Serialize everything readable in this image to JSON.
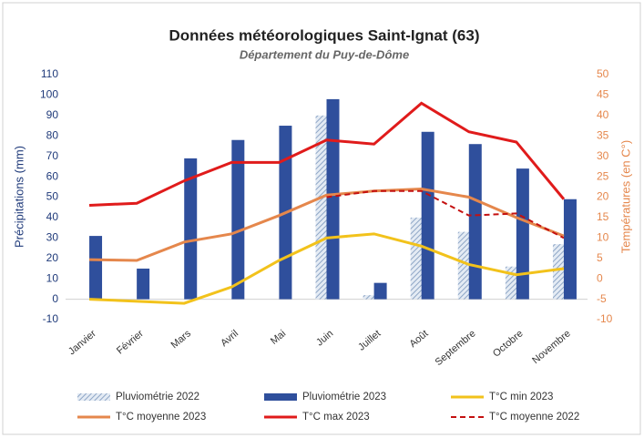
{
  "chart_data": {
    "type": "combo",
    "title": "Données météorologiques Saint-Ignat (63)",
    "subtitle": "Département du Puy-de-Dôme",
    "y_label": "Précipitations (mm)",
    "y2_label": "Températures (en C°)",
    "categories": [
      "Janvier",
      "Février",
      "Mars",
      "Avril",
      "Mai",
      "Juin",
      "Juillet",
      "Août",
      "Septembre",
      "Octobre",
      "Novembre"
    ],
    "ylim": [
      -10,
      110
    ],
    "yticks": [
      -10,
      0,
      10,
      20,
      30,
      40,
      50,
      60,
      70,
      80,
      90,
      100,
      110
    ],
    "y2lim": [
      -10,
      50
    ],
    "y2ticks": [
      -10,
      -5,
      0,
      5,
      10,
      15,
      20,
      25,
      30,
      35,
      40,
      45,
      50
    ],
    "grid": false,
    "legend": "bottom",
    "series": [
      {
        "name": "Pluviométrie 2022",
        "type": "bar",
        "pattern": "hatched",
        "color": "#8ea6c6",
        "values": [
          null,
          null,
          null,
          null,
          null,
          90,
          2,
          40,
          33,
          16,
          27
        ]
      },
      {
        "name": "Pluviométrie 2023",
        "type": "bar",
        "color": "#2f4f9c",
        "values": [
          31,
          15,
          69,
          78,
          85,
          98,
          8,
          82,
          76,
          64,
          49
        ]
      },
      {
        "name": "T°C min 2023",
        "type": "line",
        "axis": "y2",
        "color": "#f2c21b",
        "values": [
          -5,
          -5.5,
          -6,
          -2,
          4.5,
          10,
          11,
          8,
          3.5,
          1,
          2.5
        ]
      },
      {
        "name": "T°C moyenne 2023",
        "type": "line",
        "axis": "y2",
        "color": "#e5874c",
        "values": [
          4.7,
          4.5,
          9,
          11,
          15.5,
          20.5,
          21.5,
          22,
          20,
          15,
          10.5
        ]
      },
      {
        "name": "T°C max 2023",
        "type": "line",
        "axis": "y2",
        "color": "#e01b1b",
        "values": [
          18,
          18.5,
          24,
          28.5,
          28.5,
          34,
          33,
          43,
          36,
          33.5,
          19.5
        ]
      },
      {
        "name": "T°C moyenne 2022",
        "type": "line",
        "axis": "y2",
        "dashed": true,
        "color": "#c41010",
        "values": [
          null,
          null,
          null,
          null,
          null,
          20,
          21.5,
          21.5,
          15.5,
          16,
          10
        ]
      }
    ]
  }
}
